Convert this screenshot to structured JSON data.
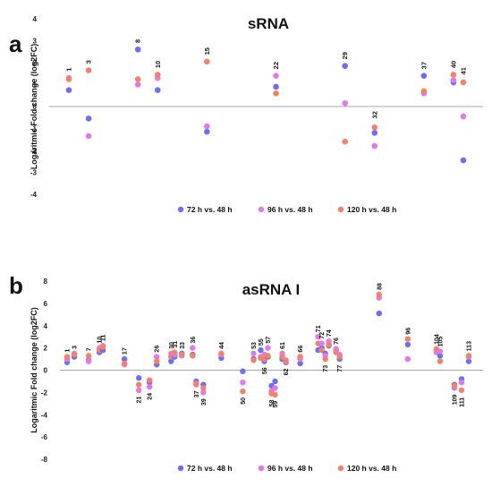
{
  "colors": {
    "s72": "#6b6ff0",
    "s96": "#e07ae8",
    "s120": "#f4826a",
    "zero_line": "#aaaaaa",
    "label": "#111111",
    "tick": "#222222"
  },
  "chart_data": [
    {
      "panel": "a",
      "type": "scatter",
      "title": "sRNA",
      "ylabel": "Logaritmic Fold change (log2FC)",
      "xlabel": "",
      "ylim": [
        -4,
        4
      ],
      "yticks": [
        4,
        3,
        2,
        1,
        0,
        -1,
        -2,
        -3,
        -4
      ],
      "grid": false,
      "legend_position": "bottom",
      "legend": [
        "72 h vs. 48 h",
        "96 h vs. 48 h",
        "120 h vs. 48 h"
      ],
      "points": [
        {
          "id": "1",
          "x": 1,
          "y72": 0.75,
          "y96": 1.3,
          "y120": 1.25,
          "label_y": 1.6
        },
        {
          "id": "3",
          "x": 3,
          "y72": -0.55,
          "y96": -1.35,
          "y120": 1.65,
          "label_y": 1.95
        },
        {
          "id": "8",
          "x": 8,
          "y72": 2.6,
          "y96": 1.0,
          "y120": 1.25,
          "label_y": 2.9
        },
        {
          "id": "10",
          "x": 10,
          "y72": 0.75,
          "y96": 1.3,
          "y120": 1.45,
          "label_y": 1.75
        },
        {
          "id": "15",
          "x": 15,
          "y72": -1.15,
          "y96": -0.9,
          "y120": 2.05,
          "label_y": 2.35
        },
        {
          "id": "22",
          "x": 22,
          "y72": 0.9,
          "y96": 1.4,
          "y120": 0.6,
          "label_y": 1.7
        },
        {
          "id": "29",
          "x": 29,
          "y72": 1.85,
          "y96": 0.15,
          "y120": -1.6,
          "label_y": 2.15
        },
        {
          "id": "32",
          "x": 32,
          "y72": -1.2,
          "y96": -1.8,
          "y120": -0.95,
          "label_y": -0.55
        },
        {
          "id": "37",
          "x": 37,
          "y72": 1.4,
          "y96": 0.6,
          "y120": 0.7,
          "label_y": 1.7
        },
        {
          "id": "40",
          "x": 40,
          "y72": 1.1,
          "y96": 1.2,
          "y120": 1.45,
          "label_y": 1.75
        },
        {
          "id": "41",
          "x": 41,
          "y72": -2.45,
          "y96": -0.45,
          "y120": 1.1,
          "label_y": 1.45
        }
      ]
    },
    {
      "panel": "b",
      "type": "scatter",
      "title": "asRNA I",
      "ylabel": "Logaritmic Fold change (log2FC)",
      "xlabel": "",
      "ylim": [
        -8,
        8
      ],
      "yticks": [
        8,
        6,
        4,
        2,
        0,
        -2,
        -4,
        -6,
        -8
      ],
      "grid": false,
      "legend_position": "bottom",
      "legend": [
        "72 h vs. 48 h",
        "96 h vs. 48 h",
        "120 h vs. 48 h"
      ],
      "points": [
        {
          "id": "1",
          "x": 1,
          "y72": 0.7,
          "y96": 1.0,
          "y120": 1.2,
          "label": "above"
        },
        {
          "id": "3",
          "x": 3,
          "y72": 1.2,
          "y96": 1.5,
          "y120": 1.4,
          "label": "above"
        },
        {
          "id": "7",
          "x": 7,
          "y72": 0.9,
          "y96": 0.8,
          "y120": 1.3,
          "label": "above"
        },
        {
          "id": "10",
          "x": 10,
          "y72": 1.6,
          "y96": 2.0,
          "y120": 1.8,
          "label": "above"
        },
        {
          "id": "11",
          "x": 11,
          "y72": 1.8,
          "y96": 2.2,
          "y120": 2.1,
          "label": "above"
        },
        {
          "id": "17",
          "x": 17,
          "y72": 1.0,
          "y96": 0.5,
          "y120": 0.6,
          "label": "above"
        },
        {
          "id": "21",
          "x": 21,
          "y72": -0.7,
          "y96": -1.8,
          "y120": -1.3,
          "label": "below"
        },
        {
          "id": "24",
          "x": 24,
          "y72": -1.1,
          "y96": -1.5,
          "y120": -0.9,
          "label": "below"
        },
        {
          "id": "26",
          "x": 26,
          "y72": 0.5,
          "y96": 1.2,
          "y120": 0.8,
          "label": "above"
        },
        {
          "id": "30",
          "x": 30,
          "y72": 0.8,
          "y96": 1.5,
          "y120": 1.2,
          "label": "above"
        },
        {
          "id": "31",
          "x": 31,
          "y72": 1.2,
          "y96": 1.4,
          "y120": 1.6,
          "label": "above"
        },
        {
          "id": "33",
          "x": 33,
          "y72": 1.5,
          "y96": 1.3,
          "y120": 1.4,
          "label": "above"
        },
        {
          "id": "36",
          "x": 36,
          "y72": 1.4,
          "y96": 2.0,
          "y120": 1.3,
          "label": "above"
        },
        {
          "id": "37",
          "x": 37,
          "y72": -1.0,
          "y96": -1.3,
          "y120": -1.2,
          "label": "below"
        },
        {
          "id": "39",
          "x": 39,
          "y72": -1.3,
          "y96": -2.0,
          "y120": -1.6,
          "label": "below"
        },
        {
          "id": "44",
          "x": 44,
          "y72": 1.1,
          "y96": 1.4,
          "y120": 1.5,
          "label": "above"
        },
        {
          "id": "50",
          "x": 50,
          "y72": -0.1,
          "y96": -1.1,
          "y120": -1.9,
          "label": "below"
        },
        {
          "id": "53",
          "x": 53,
          "y72": 1.0,
          "y96": 1.5,
          "y120": 0.9,
          "label": "above"
        },
        {
          "id": "55",
          "x": 55,
          "y72": 1.8,
          "y96": 1.2,
          "y120": 1.1,
          "label": "above"
        },
        {
          "id": "56",
          "x": 56,
          "y72": 0.8,
          "y96": 1.4,
          "y120": 1.0,
          "label": "below"
        },
        {
          "id": "57",
          "x": 57,
          "y72": 1.2,
          "y96": 2.0,
          "y120": 1.3,
          "label": "above"
        },
        {
          "id": "58",
          "x": 58,
          "y72": -1.4,
          "y96": -1.9,
          "y120": -2.1,
          "label": "below"
        },
        {
          "id": "59",
          "x": 59,
          "y72": -1.0,
          "y96": -1.6,
          "y120": -2.2,
          "label": "below"
        },
        {
          "id": "61",
          "x": 61,
          "y72": 1.0,
          "y96": 1.5,
          "y120": 1.2,
          "label": "above"
        },
        {
          "id": "62",
          "x": 62,
          "y72": 0.7,
          "y96": 0.9,
          "y120": 0.8,
          "label": "below"
        },
        {
          "id": "66",
          "x": 66,
          "y72": 0.6,
          "y96": 1.0,
          "y120": 1.2,
          "label": "above"
        },
        {
          "id": "71",
          "x": 71,
          "y72": 1.8,
          "y96": 3.0,
          "y120": 2.4,
          "label": "above"
        },
        {
          "id": "72",
          "x": 72,
          "y72": 2.0,
          "y96": 2.4,
          "y120": 1.8,
          "label": "above"
        },
        {
          "id": "73",
          "x": 73,
          "y72": 1.5,
          "y96": 1.3,
          "y120": 1.0,
          "label": "below"
        },
        {
          "id": "74",
          "x": 74,
          "y72": 2.2,
          "y96": 2.6,
          "y120": 2.3,
          "label": "above"
        },
        {
          "id": "76",
          "x": 76,
          "y72": 1.8,
          "y96": 1.9,
          "y120": 1.6,
          "label": "above"
        },
        {
          "id": "77",
          "x": 77,
          "y72": 1.0,
          "y96": 1.4,
          "y120": 1.2,
          "label": "below"
        },
        {
          "id": "88",
          "x": 88,
          "y72": 5.1,
          "y96": 6.5,
          "y120": 6.8,
          "label": "above"
        },
        {
          "id": "96",
          "x": 96,
          "y72": 2.3,
          "y96": 1.0,
          "y120": 2.8,
          "label": "above"
        },
        {
          "id": "104",
          "x": 104,
          "y72": 1.8,
          "y96": 1.6,
          "y120": 1.9,
          "label": "above"
        },
        {
          "id": "105",
          "x": 105,
          "y72": 1.3,
          "y96": 1.7,
          "y120": 0.8,
          "label": "above"
        },
        {
          "id": "109",
          "x": 109,
          "y72": -1.3,
          "y96": -1.6,
          "y120": -1.4,
          "label": "below"
        },
        {
          "id": "111",
          "x": 111,
          "y72": -0.8,
          "y96": -1.1,
          "y120": -1.8,
          "label": "below"
        },
        {
          "id": "113",
          "x": 113,
          "y72": 0.8,
          "y96": 1.2,
          "y120": 1.3,
          "label": "above"
        }
      ]
    }
  ]
}
